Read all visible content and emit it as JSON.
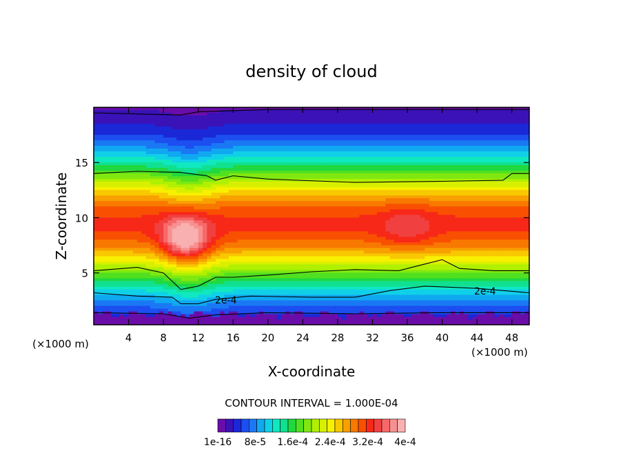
{
  "chart_data": {
    "type": "heatmap",
    "title": "density of cloud",
    "xlabel": "X-coordinate",
    "ylabel": "Z-coordinate",
    "x_unit_left": "(×1000 m)",
    "x_unit_right": "(×1000 m)",
    "xlim": [
      0,
      50
    ],
    "ylim": [
      0.3,
      20
    ],
    "x_ticks": [
      "4",
      "8",
      "12",
      "16",
      "20",
      "24",
      "28",
      "32",
      "36",
      "40",
      "44",
      "48"
    ],
    "y_ticks": [
      "5",
      "10",
      "15"
    ],
    "contour_interval_text": "CONTOUR INTERVAL = 1.000E-04",
    "contour_labels": [
      "2e-4",
      "2e-4"
    ],
    "colorbar_labels": [
      "1e-16",
      "8e-5",
      "1.6e-4",
      "2.4e-4",
      "3.2e-4",
      "4e-4"
    ],
    "colorbar_colors": [
      "#6a0da8",
      "#3a12b8",
      "#1a28d8",
      "#1c4ef0",
      "#1a78f5",
      "#10a8f0",
      "#10d0e8",
      "#10e8c0",
      "#10e090",
      "#20d840",
      "#50e020",
      "#80e810",
      "#b0f000",
      "#d8f000",
      "#f8f000",
      "#f8c800",
      "#f8a000",
      "#f87800",
      "#f85000",
      "#f82818",
      "#f04040",
      "#f86868",
      "#f89090",
      "#f8b0b0"
    ],
    "grid": false,
    "legend": "bottom-colorbar"
  }
}
